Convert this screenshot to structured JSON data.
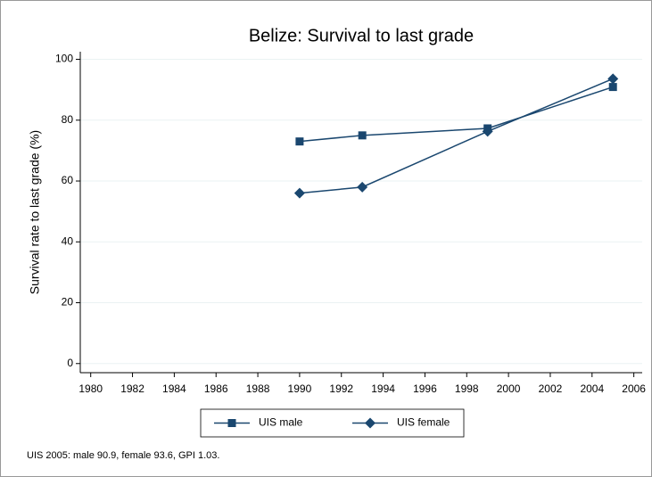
{
  "chart_data": {
    "type": "line",
    "title": "Belize: Survival to last grade",
    "y_label": "Survival rate to last grade (%)",
    "x": [
      1990,
      1993,
      1999,
      2005
    ],
    "series": [
      {
        "name": "UIS male",
        "color": "#1a476f",
        "marker": "square",
        "values": [
          73,
          75,
          77.3,
          90.9
        ]
      },
      {
        "name": "UIS female",
        "color": "#1a476f",
        "marker": "diamond",
        "values": [
          56,
          58,
          76.3,
          93.6
        ]
      }
    ],
    "xlim": [
      1979.5,
      2006.4
    ],
    "xticks": [
      1980,
      1982,
      1984,
      1986,
      1988,
      1990,
      1992,
      1994,
      1996,
      1998,
      2000,
      2002,
      2004,
      2006
    ],
    "ylim": [
      -3,
      102.5
    ],
    "yticks": [
      0,
      20,
      40,
      60,
      80,
      100
    ],
    "grid": true,
    "note": "UIS 2005: male 90.9, female 93.6, GPI 1.03."
  }
}
